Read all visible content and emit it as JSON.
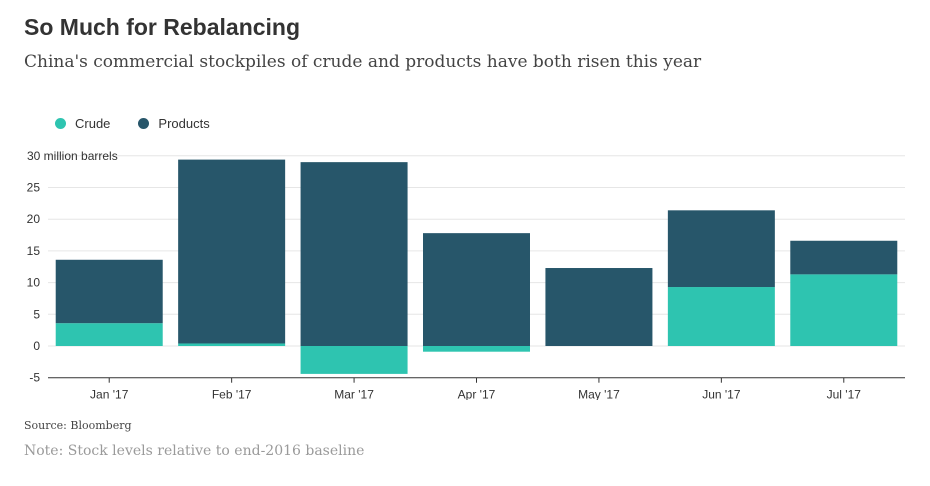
{
  "title": "So Much for Rebalancing",
  "subtitle": "China's commercial stockpiles of crude and products have both risen this year",
  "source": "Source: Bloomberg",
  "note": "Note: Stock levels relative to end-2016 baseline",
  "colors": {
    "crude": "#2ec4b0",
    "products": "#27566a",
    "grid": "#e6e6e6",
    "axis": "#333333",
    "text": "#333333"
  },
  "chart_data": {
    "type": "bar",
    "stacked": true,
    "categories": [
      "Jan '17",
      "Feb '17",
      "Mar '17",
      "Apr '17",
      "May '17",
      "Jun '17",
      "Jul '17"
    ],
    "series": [
      {
        "name": "Crude",
        "values": [
          3.6,
          0.4,
          -4.4,
          -0.9,
          0.0,
          9.3,
          11.3
        ]
      },
      {
        "name": "Products",
        "values": [
          10.0,
          29.0,
          29.0,
          17.8,
          12.3,
          12.1,
          5.3
        ]
      }
    ],
    "yticks": [
      "-5",
      "0",
      "5",
      "10",
      "15",
      "20",
      "25",
      "30 million barrels"
    ],
    "ylim": [
      -5,
      30
    ],
    "legend_position": "top-left",
    "grid": true
  }
}
